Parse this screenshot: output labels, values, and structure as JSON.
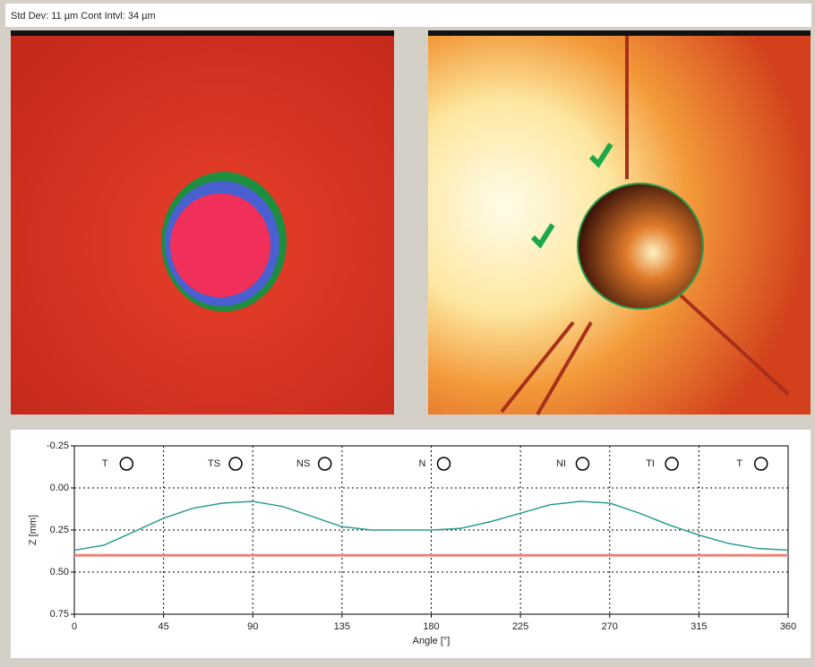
{
  "header": {
    "text": "Std Dev: 11 µm   Cont Intvl: 34 µm"
  },
  "chart_data": {
    "type": "line",
    "x_label": "Angle [°]",
    "y_label": "Z [mm]",
    "xlim": [
      0,
      360
    ],
    "xticks": [
      0,
      45,
      90,
      135,
      180,
      225,
      270,
      315,
      360
    ],
    "ylim": [
      -0.25,
      0.75
    ],
    "y_inverted": true,
    "yticks": [
      -0.25,
      {
        "value": 0,
        "label": "0.00"
      },
      0.25,
      {
        "value": 0.5,
        "label": "0.50"
      },
      0.75
    ],
    "grid": true,
    "sectors": [
      {
        "label": "T",
        "x": 20
      },
      {
        "label": "TS",
        "x": 75
      },
      {
        "label": "NS",
        "x": 120
      },
      {
        "label": "N",
        "x": 180
      },
      {
        "label": "NI",
        "x": 250
      },
      {
        "label": "TI",
        "x": 295
      },
      {
        "label": "T",
        "x": 340
      }
    ],
    "series": [
      {
        "color": "#2a9d8f",
        "x": [
          0,
          15,
          30,
          45,
          60,
          75,
          90,
          105,
          120,
          135,
          150,
          165,
          180,
          195,
          210,
          225,
          240,
          255,
          270,
          285,
          300,
          315,
          330,
          345,
          360
        ],
        "values": [
          0.37,
          0.34,
          0.26,
          0.18,
          0.12,
          0.09,
          0.08,
          0.11,
          0.17,
          0.23,
          0.25,
          0.25,
          0.25,
          0.24,
          0.2,
          0.15,
          0.1,
          0.08,
          0.09,
          0.15,
          0.22,
          0.28,
          0.33,
          0.36,
          0.37
        ]
      },
      {
        "color": "#e8857a",
        "x": [
          0,
          360
        ],
        "values": [
          0.4,
          0.4
        ]
      }
    ]
  }
}
